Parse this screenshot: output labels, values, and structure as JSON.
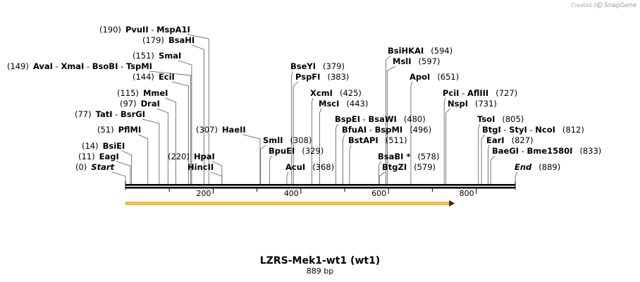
{
  "brand": {
    "created_by": "Created by",
    "name": "SnapGene"
  },
  "map": {
    "title": "LZRS-Mek1-wt1 (wt1)",
    "length_label": "889 bp",
    "length": 889,
    "axis_ticks": [
      200,
      400,
      600,
      800
    ],
    "feature": {
      "start": 0,
      "end": 751,
      "color": "#f2c14e",
      "direction": "forward"
    }
  },
  "sites": [
    {
      "pos": 190,
      "parts": [
        {
          "t": "(190)",
          "c": "pos"
        },
        {
          "t": "PvuII",
          "c": "enz"
        },
        {
          "t": " - ",
          "c": "pos"
        },
        {
          "t": "MspA1I",
          "c": "enz"
        }
      ]
    },
    {
      "pos": 179,
      "parts": [
        {
          "t": "(179)",
          "c": "pos"
        },
        {
          "t": "BsaHI",
          "c": "enz"
        }
      ]
    },
    {
      "pos": 151,
      "parts": [
        {
          "t": "(151)",
          "c": "pos"
        },
        {
          "t": "SmaI",
          "c": "enz"
        }
      ]
    },
    {
      "pos": 149,
      "parts": [
        {
          "t": "(149)",
          "c": "pos"
        },
        {
          "t": "AvaI",
          "c": "enz"
        },
        {
          "t": " - ",
          "c": "pos"
        },
        {
          "t": "XmaI",
          "c": "enz"
        },
        {
          "t": " - ",
          "c": "pos"
        },
        {
          "t": "BsoBI",
          "c": "enz"
        },
        {
          "t": " - ",
          "c": "pos"
        },
        {
          "t": "TspMI",
          "c": "enz"
        }
      ]
    },
    {
      "pos": 144,
      "parts": [
        {
          "t": "(144)",
          "c": "pos"
        },
        {
          "t": "EciI",
          "c": "enz"
        }
      ]
    },
    {
      "pos": 115,
      "parts": [
        {
          "t": "(115)",
          "c": "pos"
        },
        {
          "t": "MmeI",
          "c": "enz"
        }
      ]
    },
    {
      "pos": 97,
      "parts": [
        {
          "t": "(97)",
          "c": "pos"
        },
        {
          "t": "DraI",
          "c": "enz"
        }
      ]
    },
    {
      "pos": 77,
      "parts": [
        {
          "t": "(77)",
          "c": "pos"
        },
        {
          "t": "TatI",
          "c": "enz"
        },
        {
          "t": " - ",
          "c": "pos"
        },
        {
          "t": "BsrGI",
          "c": "enz"
        }
      ]
    },
    {
      "pos": 51,
      "parts": [
        {
          "t": "(51)",
          "c": "pos"
        },
        {
          "t": "PflMI",
          "c": "enz"
        }
      ]
    },
    {
      "pos": 14,
      "parts": [
        {
          "t": "(14)",
          "c": "pos"
        },
        {
          "t": "BsiEI",
          "c": "enz"
        }
      ]
    },
    {
      "pos": 11,
      "parts": [
        {
          "t": "(11)",
          "c": "pos"
        },
        {
          "t": "EagI",
          "c": "enz"
        }
      ]
    },
    {
      "pos": 0,
      "parts": [
        {
          "t": "(0)",
          "c": "pos"
        },
        {
          "t": "Start",
          "c": "ital"
        }
      ]
    },
    {
      "pos": 220,
      "parts": [
        {
          "t": "(220)",
          "c": "pos"
        },
        {
          "t": "HpaI",
          "c": "enz"
        }
      ]
    },
    {
      "pos": 220,
      "parts": [
        {
          "t": "HincII",
          "c": "enz"
        }
      ]
    },
    {
      "pos": 307,
      "parts": [
        {
          "t": "(307)",
          "c": "pos"
        },
        {
          "t": "HaeII",
          "c": "enz"
        }
      ]
    },
    {
      "pos": 308,
      "parts": [
        {
          "t": "SmlI",
          "c": "enz"
        },
        {
          "t": "(308)",
          "c": "pos"
        }
      ]
    },
    {
      "pos": 329,
      "parts": [
        {
          "t": "BpuEI",
          "c": "enz"
        },
        {
          "t": "(329)",
          "c": "pos"
        }
      ]
    },
    {
      "pos": 368,
      "parts": [
        {
          "t": "AcuI",
          "c": "enz"
        },
        {
          "t": "(368)",
          "c": "pos"
        }
      ]
    },
    {
      "pos": 379,
      "parts": [
        {
          "t": "BseYI",
          "c": "enz"
        },
        {
          "t": "(379)",
          "c": "pos"
        }
      ]
    },
    {
      "pos": 383,
      "parts": [
        {
          "t": "PspFI",
          "c": "enz"
        },
        {
          "t": "(383)",
          "c": "pos"
        }
      ]
    },
    {
      "pos": 425,
      "parts": [
        {
          "t": "XcmI",
          "c": "enz"
        },
        {
          "t": "(425)",
          "c": "pos"
        }
      ]
    },
    {
      "pos": 443,
      "parts": [
        {
          "t": "MscI",
          "c": "enz"
        },
        {
          "t": "(443)",
          "c": "pos"
        }
      ]
    },
    {
      "pos": 480,
      "parts": [
        {
          "t": "BspEI",
          "c": "enz"
        },
        {
          "t": " - ",
          "c": "pos"
        },
        {
          "t": "BsaWI",
          "c": "enz"
        },
        {
          "t": "(480)",
          "c": "pos"
        }
      ]
    },
    {
      "pos": 496,
      "parts": [
        {
          "t": "BfuAI",
          "c": "enz"
        },
        {
          "t": " - ",
          "c": "pos"
        },
        {
          "t": "BspMI",
          "c": "enz"
        },
        {
          "t": "(496)",
          "c": "pos"
        }
      ]
    },
    {
      "pos": 511,
      "parts": [
        {
          "t": "BstAPI",
          "c": "enz"
        },
        {
          "t": "(511)",
          "c": "pos"
        }
      ]
    },
    {
      "pos": 578,
      "parts": [
        {
          "t": "BsaBI *",
          "c": "enz"
        },
        {
          "t": "(578)",
          "c": "pos"
        }
      ]
    },
    {
      "pos": 579,
      "parts": [
        {
          "t": "BtgZI",
          "c": "enz"
        },
        {
          "t": "(579)",
          "c": "pos"
        }
      ]
    },
    {
      "pos": 594,
      "parts": [
        {
          "t": "BsiHKAI",
          "c": "enz"
        },
        {
          "t": "(594)",
          "c": "pos"
        }
      ]
    },
    {
      "pos": 597,
      "parts": [
        {
          "t": "MslI",
          "c": "enz"
        },
        {
          "t": "(597)",
          "c": "pos"
        }
      ]
    },
    {
      "pos": 651,
      "parts": [
        {
          "t": "ApoI",
          "c": "enz"
        },
        {
          "t": "(651)",
          "c": "pos"
        }
      ]
    },
    {
      "pos": 727,
      "parts": [
        {
          "t": "PciI",
          "c": "enz"
        },
        {
          "t": " - ",
          "c": "pos"
        },
        {
          "t": "AflIII",
          "c": "enz"
        },
        {
          "t": "(727)",
          "c": "pos"
        }
      ]
    },
    {
      "pos": 731,
      "parts": [
        {
          "t": "NspI",
          "c": "enz"
        },
        {
          "t": "(731)",
          "c": "pos"
        }
      ]
    },
    {
      "pos": 805,
      "parts": [
        {
          "t": "TsoI",
          "c": "enz"
        },
        {
          "t": "(805)",
          "c": "pos"
        }
      ]
    },
    {
      "pos": 812,
      "parts": [
        {
          "t": "BtgI",
          "c": "enz"
        },
        {
          "t": " - ",
          "c": "pos"
        },
        {
          "t": "StyI",
          "c": "enz"
        },
        {
          "t": " - ",
          "c": "pos"
        },
        {
          "t": "NcoI",
          "c": "enz"
        },
        {
          "t": "(812)",
          "c": "pos"
        }
      ]
    },
    {
      "pos": 827,
      "parts": [
        {
          "t": "EarI",
          "c": "enz"
        },
        {
          "t": "(827)",
          "c": "pos"
        }
      ]
    },
    {
      "pos": 833,
      "parts": [
        {
          "t": "BaeGI",
          "c": "enz"
        },
        {
          "t": " - ",
          "c": "pos"
        },
        {
          "t": "Bme1580I",
          "c": "enz"
        },
        {
          "t": "(833)",
          "c": "pos"
        }
      ]
    },
    {
      "pos": 889,
      "parts": [
        {
          "t": "End",
          "c": "ital"
        },
        {
          "t": "(889)",
          "c": "pos"
        }
      ]
    }
  ]
}
